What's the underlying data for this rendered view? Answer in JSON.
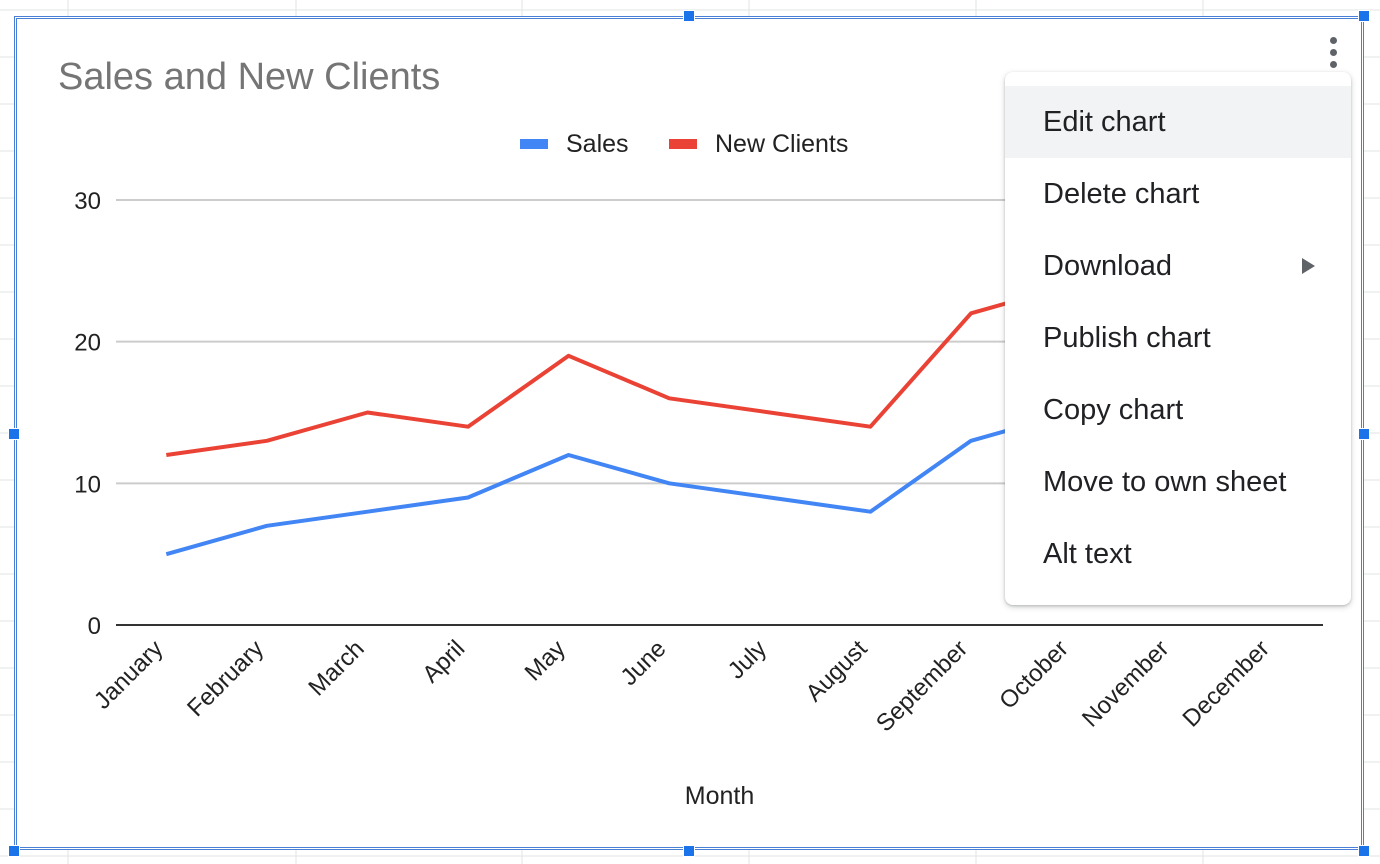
{
  "chart_data": {
    "type": "line",
    "title": "Sales and New Clients",
    "xlabel": "Month",
    "ylabel": "",
    "ylim": [
      0,
      30
    ],
    "yticks": [
      0,
      10,
      20,
      30
    ],
    "categories": [
      "January",
      "February",
      "March",
      "April",
      "May",
      "June",
      "July",
      "August",
      "September",
      "October",
      "November",
      "December"
    ],
    "series": [
      {
        "name": "Sales",
        "color": "#4285f4",
        "values": [
          5,
          7,
          8,
          9,
          12,
          10,
          9,
          8,
          13,
          15,
          null,
          null
        ]
      },
      {
        "name": "New Clients",
        "color": "#ea4335",
        "values": [
          12,
          13,
          15,
          14,
          19,
          16,
          15,
          14,
          22,
          24,
          null,
          null
        ]
      }
    ],
    "legend": "top",
    "grid": true
  },
  "menu": {
    "items": [
      {
        "label": "Edit chart",
        "highlighted": true,
        "submenu": false
      },
      {
        "label": "Delete chart",
        "highlighted": false,
        "submenu": false
      },
      {
        "label": "Download",
        "highlighted": false,
        "submenu": true
      },
      {
        "label": "Publish chart",
        "highlighted": false,
        "submenu": false
      },
      {
        "label": "Copy chart",
        "highlighted": false,
        "submenu": false
      },
      {
        "label": "Move to own sheet",
        "highlighted": false,
        "submenu": false
      },
      {
        "label": "Alt text",
        "highlighted": false,
        "submenu": false
      }
    ]
  }
}
